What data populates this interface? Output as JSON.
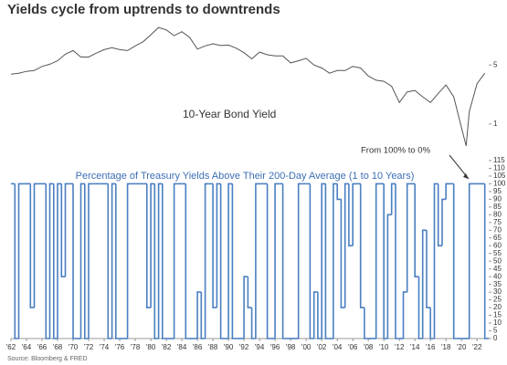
{
  "title": "Yields cycle from uptrends to downtrends",
  "source": "Source: Bloomberg & FRED",
  "chart_data": [
    {
      "type": "line",
      "annotation": "10-Year Bond Yield",
      "log_scale": true,
      "color": "#555555",
      "xlim": [
        1962,
        2023.5
      ],
      "ylim": [
        0.45,
        17
      ],
      "yticks": [
        1,
        5
      ],
      "x": [
        1962,
        1963,
        1964,
        1965,
        1966,
        1967,
        1968,
        1969,
        1970,
        1971,
        1972,
        1973,
        1974,
        1975,
        1976,
        1977,
        1978,
        1979,
        1980,
        1981,
        1982,
        1983,
        1984,
        1985,
        1986,
        1987,
        1988,
        1989,
        1990,
        1991,
        1992,
        1993,
        1994,
        1995,
        1996,
        1997,
        1998,
        1999,
        2000,
        2001,
        2002,
        2003,
        2004,
        2005,
        2006,
        2007,
        2008,
        2009,
        2010,
        2011,
        2012,
        2013,
        2014,
        2015,
        2016,
        2017,
        2018,
        2019,
        2020,
        2020.6,
        2021,
        2022,
        2023
      ],
      "values": [
        3.9,
        4.0,
        4.2,
        4.3,
        4.8,
        5.1,
        5.6,
        6.7,
        7.4,
        6.2,
        6.2,
        6.9,
        7.6,
        8.0,
        7.6,
        7.4,
        8.4,
        9.4,
        11.4,
        13.9,
        13.0,
        11.1,
        12.4,
        10.6,
        7.7,
        8.4,
        8.9,
        8.5,
        8.6,
        7.9,
        7.0,
        5.9,
        7.1,
        6.6,
        6.4,
        6.4,
        5.3,
        5.6,
        6.0,
        5.0,
        4.6,
        4.0,
        4.3,
        4.3,
        4.8,
        4.6,
        3.7,
        3.3,
        3.2,
        2.8,
        1.8,
        2.4,
        2.5,
        2.1,
        1.8,
        2.3,
        2.9,
        2.1,
        0.9,
        0.55,
        1.4,
        3.0,
        4.0
      ]
    },
    {
      "type": "step",
      "title": "Percentage of Treasury Yields Above Their 200-Day Average (1 to 10 Years)",
      "annotation": "From 100% to 0%",
      "color": "#4a7fc1",
      "xlim": [
        1962,
        2023.5
      ],
      "ylim": [
        0,
        115
      ],
      "yticks": [
        0,
        5,
        10,
        15,
        20,
        25,
        30,
        35,
        40,
        45,
        50,
        55,
        60,
        65,
        70,
        75,
        80,
        85,
        90,
        95,
        100,
        105,
        110,
        115
      ],
      "xticks": [
        {
          "value": 1962,
          "label": "'62"
        },
        {
          "value": 1964,
          "label": "'64"
        },
        {
          "value": 1966,
          "label": "'66"
        },
        {
          "value": 1968,
          "label": "'68"
        },
        {
          "value": 1970,
          "label": "'70"
        },
        {
          "value": 1972,
          "label": "'72"
        },
        {
          "value": 1974,
          "label": "'74"
        },
        {
          "value": 1976,
          "label": "'76"
        },
        {
          "value": 1978,
          "label": "'78"
        },
        {
          "value": 1980,
          "label": "'80"
        },
        {
          "value": 1982,
          "label": "'82"
        },
        {
          "value": 1984,
          "label": "'84"
        },
        {
          "value": 1986,
          "label": "'86"
        },
        {
          "value": 1988,
          "label": "'88"
        },
        {
          "value": 1990,
          "label": "'90"
        },
        {
          "value": 1992,
          "label": "'92"
        },
        {
          "value": 1994,
          "label": "'94"
        },
        {
          "value": 1996,
          "label": "'96"
        },
        {
          "value": 1998,
          "label": "'98"
        },
        {
          "value": 2000,
          "label": "'00"
        },
        {
          "value": 2002,
          "label": "'02"
        },
        {
          "value": 2004,
          "label": "'04"
        },
        {
          "value": 2006,
          "label": "'06"
        },
        {
          "value": 2008,
          "label": "'08"
        },
        {
          "value": 2010,
          "label": "'10"
        },
        {
          "value": 2012,
          "label": "'12"
        },
        {
          "value": 2014,
          "label": "'14"
        },
        {
          "value": 2016,
          "label": "'16"
        },
        {
          "value": 2018,
          "label": "'18"
        },
        {
          "value": 2020,
          "label": "'20"
        },
        {
          "value": 2022,
          "label": "'22"
        }
      ],
      "x": [
        1962,
        1962.5,
        1963,
        1963.5,
        1964,
        1964.5,
        1965,
        1965.5,
        1966,
        1966.5,
        1967,
        1967.5,
        1968,
        1968.5,
        1969,
        1969.5,
        1970,
        1970.5,
        1971,
        1971.5,
        1972,
        1972.5,
        1973,
        1973.5,
        1974,
        1974.5,
        1975,
        1975.5,
        1976,
        1976.5,
        1977,
        1977.5,
        1978,
        1978.5,
        1979,
        1979.5,
        1980,
        1980.5,
        1981,
        1981.5,
        1982,
        1982.5,
        1983,
        1983.5,
        1984,
        1984.5,
        1985,
        1985.5,
        1986,
        1986.5,
        1987,
        1987.5,
        1988,
        1988.5,
        1989,
        1989.5,
        1990,
        1990.5,
        1991,
        1991.5,
        1992,
        1992.5,
        1993,
        1993.5,
        1994,
        1994.5,
        1995,
        1995.5,
        1996,
        1996.5,
        1997,
        1997.5,
        1998,
        1998.5,
        1999,
        1999.5,
        2000,
        2000.5,
        2001,
        2001.5,
        2002,
        2002.5,
        2003,
        2003.5,
        2004,
        2004.5,
        2005,
        2005.5,
        2006,
        2006.5,
        2007,
        2007.5,
        2008,
        2008.5,
        2009,
        2009.5,
        2010,
        2010.5,
        2011,
        2011.5,
        2012,
        2012.5,
        2013,
        2013.5,
        2014,
        2014.5,
        2015,
        2015.5,
        2016,
        2016.5,
        2017,
        2017.5,
        2018,
        2018.5,
        2019,
        2019.5,
        2020,
        2020.5,
        2021,
        2021.5,
        2022,
        2022.5,
        2023
      ],
      "values": [
        100,
        0,
        100,
        100,
        100,
        20,
        100,
        100,
        100,
        0,
        100,
        0,
        100,
        40,
        100,
        100,
        0,
        0,
        100,
        0,
        100,
        100,
        100,
        100,
        100,
        0,
        100,
        0,
        0,
        0,
        100,
        100,
        100,
        100,
        100,
        20,
        100,
        0,
        100,
        0,
        0,
        0,
        100,
        100,
        100,
        0,
        0,
        0,
        30,
        0,
        100,
        100,
        20,
        100,
        0,
        0,
        100,
        0,
        0,
        0,
        40,
        20,
        0,
        100,
        100,
        100,
        0,
        0,
        100,
        100,
        0,
        0,
        0,
        0,
        100,
        100,
        100,
        0,
        30,
        0,
        100,
        0,
        0,
        100,
        90,
        20,
        100,
        60,
        100,
        100,
        20,
        0,
        0,
        0,
        100,
        100,
        0,
        80,
        100,
        0,
        0,
        30,
        100,
        100,
        40,
        0,
        70,
        20,
        0,
        100,
        60,
        90,
        100,
        100,
        0,
        0,
        0,
        0,
        100,
        100,
        100,
        100,
        0
      ]
    }
  ]
}
